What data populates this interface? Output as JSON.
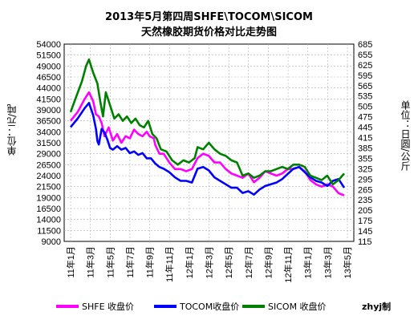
{
  "title": "2013年5月第四周SHFE\\TOCOM\\SICOM",
  "subtitle": "天然橡胶期货价格对比走势图",
  "credit": "zhyj制",
  "colors": {
    "SHFE": "#ff00ff",
    "TOCOM": "#0000ff",
    "SICOM": "#008000",
    "grid": "#b0b0b0",
    "axis": "#000000"
  },
  "chart_data": {
    "type": "line",
    "ylabel_left": "单位：元/吨",
    "ylabel_right": "单位：日圆/公斤",
    "ylim_left": [
      9000,
      54000
    ],
    "ylim_right": [
      115,
      685
    ],
    "yticks_left": [
      "54000",
      "51500",
      "49000",
      "46500",
      "44000",
      "41500",
      "39000",
      "36500",
      "34000",
      "31500",
      "29000",
      "26500",
      "24000",
      "21500",
      "19000",
      "16500",
      "14000",
      "11500",
      "9000"
    ],
    "yticks_right": [
      "685",
      "655",
      "625",
      "595",
      "565",
      "535",
      "505",
      "475",
      "445",
      "415",
      "385",
      "355",
      "325",
      "295",
      "265",
      "235",
      "205",
      "175",
      "145",
      "115"
    ],
    "xticks": [
      "11年1月",
      "11年3月",
      "11年5月",
      "11年7月",
      "11年9月",
      "11年11月",
      "12年1月",
      "12年3月",
      "12年5月",
      "12年7月",
      "12年9月",
      "12年11月",
      "13年1月",
      "13年3月",
      "13年5月"
    ],
    "grid": true,
    "legend_position": "bottom",
    "series": [
      {
        "name": "SHFE 收盘价",
        "axis": "left",
        "points": [
          [
            0,
            36500
          ],
          [
            0.5,
            38500
          ],
          [
            1,
            41500
          ],
          [
            1.3,
            43000
          ],
          [
            1.6,
            41000
          ],
          [
            1.8,
            38000
          ],
          [
            2.0,
            37500
          ],
          [
            2.2,
            36000
          ],
          [
            2.4,
            33000
          ],
          [
            2.7,
            35000
          ],
          [
            3.0,
            32000
          ],
          [
            3.3,
            33500
          ],
          [
            3.6,
            31500
          ],
          [
            3.9,
            33000
          ],
          [
            4.2,
            32500
          ],
          [
            4.5,
            34500
          ],
          [
            4.8,
            33500
          ],
          [
            5.1,
            33000
          ],
          [
            5.4,
            34000
          ],
          [
            5.6,
            33000
          ],
          [
            5.9,
            32500
          ],
          [
            6.0,
            31000
          ],
          [
            6.3,
            29000
          ],
          [
            6.6,
            29000
          ],
          [
            7.0,
            27000
          ],
          [
            7.4,
            25500
          ],
          [
            7.8,
            25500
          ],
          [
            8.2,
            25000
          ],
          [
            8.6,
            25500
          ],
          [
            9.0,
            28000
          ],
          [
            9.4,
            29000
          ],
          [
            9.8,
            28500
          ],
          [
            10.2,
            27000
          ],
          [
            10.6,
            27000
          ],
          [
            11.0,
            25500
          ],
          [
            11.4,
            24500
          ],
          [
            11.8,
            24000
          ],
          [
            12.2,
            23500
          ],
          [
            12.6,
            24500
          ],
          [
            13.0,
            22500
          ],
          [
            13.4,
            23500
          ],
          [
            13.8,
            25000
          ],
          [
            14.2,
            24500
          ],
          [
            14.6,
            24000
          ],
          [
            15.0,
            24500
          ],
          [
            15.4,
            25500
          ],
          [
            15.8,
            25500
          ],
          [
            16.2,
            26000
          ],
          [
            16.6,
            25000
          ],
          [
            17.0,
            23000
          ],
          [
            17.4,
            22000
          ],
          [
            17.8,
            21500
          ],
          [
            18.2,
            22000
          ],
          [
            18.6,
            21500
          ],
          [
            19.0,
            20000
          ],
          [
            19.4,
            19500
          ]
        ]
      },
      {
        "name": "TOCOM收盘价",
        "axis": "right",
        "points": [
          [
            0,
            445
          ],
          [
            0.5,
            470
          ],
          [
            1,
            500
          ],
          [
            1.3,
            515
          ],
          [
            1.6,
            480
          ],
          [
            1.8,
            440
          ],
          [
            1.9,
            405
          ],
          [
            2.0,
            395
          ],
          [
            2.2,
            440
          ],
          [
            2.4,
            430
          ],
          [
            2.6,
            410
          ],
          [
            2.8,
            385
          ],
          [
            3.0,
            380
          ],
          [
            3.3,
            390
          ],
          [
            3.6,
            380
          ],
          [
            3.9,
            385
          ],
          [
            4.2,
            370
          ],
          [
            4.5,
            375
          ],
          [
            4.8,
            365
          ],
          [
            5.1,
            370
          ],
          [
            5.4,
            355
          ],
          [
            5.7,
            355
          ],
          [
            6.0,
            340
          ],
          [
            6.3,
            330
          ],
          [
            6.6,
            325
          ],
          [
            7.0,
            315
          ],
          [
            7.4,
            300
          ],
          [
            7.8,
            290
          ],
          [
            8.2,
            290
          ],
          [
            8.6,
            285
          ],
          [
            9.0,
            325
          ],
          [
            9.4,
            330
          ],
          [
            9.8,
            320
          ],
          [
            10.2,
            300
          ],
          [
            10.6,
            290
          ],
          [
            11.0,
            280
          ],
          [
            11.4,
            270
          ],
          [
            11.8,
            270
          ],
          [
            12.2,
            255
          ],
          [
            12.6,
            260
          ],
          [
            13.0,
            250
          ],
          [
            13.4,
            265
          ],
          [
            13.8,
            275
          ],
          [
            14.2,
            280
          ],
          [
            14.6,
            285
          ],
          [
            15.0,
            295
          ],
          [
            15.4,
            310
          ],
          [
            15.8,
            325
          ],
          [
            16.2,
            330
          ],
          [
            16.6,
            315
          ],
          [
            17.0,
            300
          ],
          [
            17.4,
            290
          ],
          [
            17.8,
            285
          ],
          [
            18.2,
            275
          ],
          [
            18.6,
            290
          ],
          [
            19.0,
            295
          ],
          [
            19.4,
            270
          ]
        ]
      },
      {
        "name": "SICOM 收盘价",
        "axis": "left",
        "points": [
          [
            0,
            38500
          ],
          [
            0.4,
            42000
          ],
          [
            0.8,
            45500
          ],
          [
            1.1,
            49000
          ],
          [
            1.3,
            50500
          ],
          [
            1.6,
            47500
          ],
          [
            1.9,
            45000
          ],
          [
            2.1,
            41000
          ],
          [
            2.3,
            37500
          ],
          [
            2.5,
            43000
          ],
          [
            2.7,
            41000
          ],
          [
            2.9,
            39000
          ],
          [
            3.1,
            37000
          ],
          [
            3.4,
            38000
          ],
          [
            3.7,
            36500
          ],
          [
            4.0,
            37500
          ],
          [
            4.3,
            36000
          ],
          [
            4.6,
            37000
          ],
          [
            4.9,
            35500
          ],
          [
            5.2,
            35000
          ],
          [
            5.5,
            36500
          ],
          [
            5.8,
            33500
          ],
          [
            6.1,
            32500
          ],
          [
            6.4,
            30000
          ],
          [
            6.8,
            29500
          ],
          [
            7.2,
            27500
          ],
          [
            7.6,
            26500
          ],
          [
            8.0,
            27500
          ],
          [
            8.4,
            27000
          ],
          [
            8.8,
            28000
          ],
          [
            9.0,
            30500
          ],
          [
            9.4,
            30000
          ],
          [
            9.8,
            31500
          ],
          [
            10.2,
            30000
          ],
          [
            10.6,
            29000
          ],
          [
            11.0,
            28500
          ],
          [
            11.4,
            27500
          ],
          [
            11.8,
            27000
          ],
          [
            12.2,
            24000
          ],
          [
            12.6,
            24500
          ],
          [
            13.0,
            23500
          ],
          [
            13.4,
            24000
          ],
          [
            13.8,
            25000
          ],
          [
            14.2,
            25000
          ],
          [
            14.6,
            25500
          ],
          [
            15.0,
            26000
          ],
          [
            15.4,
            25500
          ],
          [
            15.8,
            26500
          ],
          [
            16.2,
            26500
          ],
          [
            16.6,
            26000
          ],
          [
            17.0,
            24000
          ],
          [
            17.4,
            23500
          ],
          [
            17.8,
            23000
          ],
          [
            18.2,
            24000
          ],
          [
            18.6,
            22000
          ],
          [
            19.0,
            23000
          ],
          [
            19.4,
            24500
          ]
        ]
      }
    ]
  }
}
